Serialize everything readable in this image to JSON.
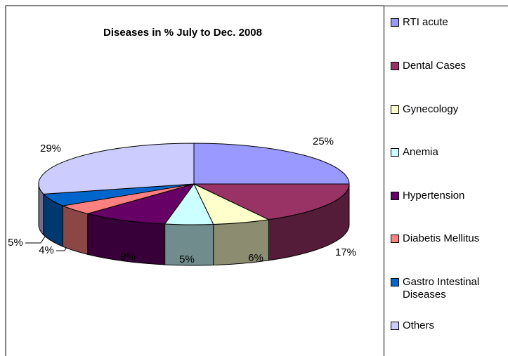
{
  "chart_data": {
    "type": "pie",
    "title": "Diseases in % July to Dec.  2008",
    "categories": [
      "RTI acute",
      "Dental Cases",
      "Gynecology",
      "Anemia",
      "Hypertension",
      "Diabetis Mellitus",
      "Gastro Intestinal Diseases",
      "Others"
    ],
    "values": [
      25,
      17,
      6,
      5,
      9,
      4,
      5,
      29
    ],
    "value_labels": [
      "25%",
      "17%",
      "6%",
      "5%",
      "9%",
      "4%",
      "5%",
      "29%"
    ],
    "colors": [
      "#9999ff",
      "#993366",
      "#ffffcc",
      "#ccffff",
      "#660066",
      "#ff8080",
      "#0066cc",
      "#ccccff"
    ],
    "legend": "right"
  }
}
